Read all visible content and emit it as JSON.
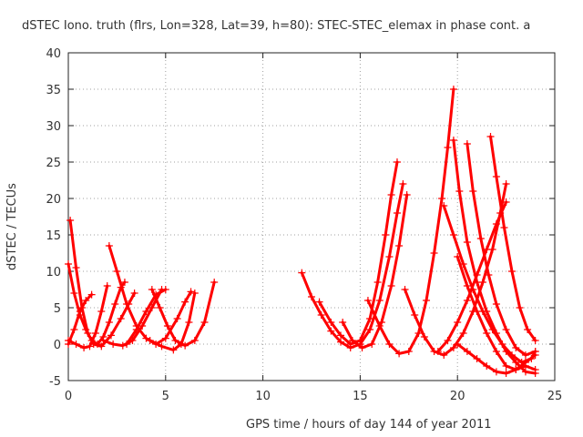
{
  "chart_data": {
    "type": "scatter",
    "title": "dSTEC Iono. truth (flrs, Lon=328, Lat=39, h=80): STEC-STEC_elemax in phase cont. a",
    "xlabel": "GPS time / hours of day 144 of year 2011",
    "ylabel": "dSTEC  / TECUs",
    "xlim": [
      0,
      25
    ],
    "ylim": [
      -5,
      40
    ],
    "xticks": [
      0,
      5,
      10,
      15,
      20,
      25
    ],
    "yticks": [
      -5,
      0,
      5,
      10,
      15,
      20,
      25,
      30,
      35,
      40
    ],
    "grid": true,
    "marker": "plus",
    "color": "#ff0000",
    "series": [
      {
        "points": [
          [
            0.0,
            11.0
          ],
          [
            0.3,
            7.0
          ],
          [
            0.6,
            4.0
          ],
          [
            0.9,
            2.0
          ],
          [
            1.2,
            0.5
          ],
          [
            1.5,
            0.0
          ],
          [
            1.8,
            1.0
          ],
          [
            2.1,
            3.0
          ],
          [
            2.4,
            5.5
          ],
          [
            2.7,
            7.8
          ],
          [
            2.9,
            8.5
          ]
        ]
      },
      {
        "points": [
          [
            0.1,
            17.0
          ],
          [
            0.4,
            10.5
          ],
          [
            0.7,
            5.0
          ],
          [
            1.0,
            1.5
          ],
          [
            1.3,
            0.0
          ],
          [
            1.7,
            -0.3
          ],
          [
            2.2,
            1.2
          ],
          [
            2.7,
            3.5
          ],
          [
            3.1,
            5.5
          ],
          [
            3.4,
            7.0
          ]
        ]
      },
      {
        "points": [
          [
            0.0,
            0.5
          ],
          [
            0.4,
            0.0
          ],
          [
            0.8,
            -0.5
          ],
          [
            1.1,
            -0.3
          ],
          [
            1.4,
            1.5
          ],
          [
            1.7,
            4.5
          ],
          [
            2.0,
            8.0
          ]
        ]
      },
      {
        "points": [
          [
            0.0,
            0.0
          ],
          [
            0.3,
            2.0
          ],
          [
            0.6,
            4.5
          ],
          [
            0.9,
            6.0
          ],
          [
            1.2,
            6.8
          ]
        ]
      },
      {
        "points": [
          [
            2.1,
            13.5
          ],
          [
            2.5,
            10.0
          ],
          [
            3.0,
            5.5
          ],
          [
            3.5,
            2.5
          ],
          [
            4.0,
            0.8
          ],
          [
            4.5,
            0.0
          ],
          [
            5.0,
            0.8
          ],
          [
            5.6,
            3.5
          ],
          [
            6.0,
            5.8
          ],
          [
            6.3,
            7.2
          ]
        ]
      },
      {
        "points": [
          [
            1.8,
            0.5
          ],
          [
            2.3,
            0.0
          ],
          [
            2.8,
            -0.2
          ],
          [
            3.3,
            0.5
          ],
          [
            3.8,
            2.5
          ],
          [
            4.3,
            5.0
          ],
          [
            4.8,
            7.5
          ]
        ]
      },
      {
        "points": [
          [
            3.0,
            0.0
          ],
          [
            3.5,
            2.0
          ],
          [
            4.0,
            4.5
          ],
          [
            4.5,
            6.8
          ],
          [
            5.0,
            7.5
          ]
        ]
      },
      {
        "points": [
          [
            4.3,
            7.5
          ],
          [
            4.7,
            5.0
          ],
          [
            5.1,
            2.5
          ],
          [
            5.5,
            0.5
          ],
          [
            6.0,
            -0.2
          ],
          [
            6.5,
            0.5
          ],
          [
            7.0,
            3.0
          ],
          [
            7.5,
            8.5
          ]
        ]
      },
      {
        "points": [
          [
            4.2,
            0.5
          ],
          [
            4.8,
            -0.3
          ],
          [
            5.4,
            -0.8
          ],
          [
            5.8,
            0.0
          ],
          [
            6.2,
            3.0
          ],
          [
            6.5,
            7.0
          ]
        ]
      },
      {
        "points": [
          [
            12.0,
            9.8
          ],
          [
            12.5,
            6.5
          ],
          [
            13.0,
            4.0
          ],
          [
            13.5,
            1.8
          ],
          [
            14.0,
            0.3
          ],
          [
            14.5,
            -0.5
          ],
          [
            15.0,
            0.0
          ],
          [
            15.5,
            2.0
          ],
          [
            16.0,
            6.0
          ],
          [
            16.5,
            12.0
          ],
          [
            16.9,
            18.0
          ],
          [
            17.2,
            22.0
          ]
        ]
      },
      {
        "points": [
          [
            12.9,
            5.8
          ],
          [
            13.5,
            3.0
          ],
          [
            14.0,
            1.2
          ],
          [
            14.5,
            0.0
          ],
          [
            15.0,
            0.5
          ],
          [
            15.5,
            3.5
          ],
          [
            15.9,
            8.5
          ],
          [
            16.3,
            15.0
          ],
          [
            16.6,
            20.5
          ],
          [
            16.9,
            25.0
          ]
        ]
      },
      {
        "points": [
          [
            14.1,
            3.0
          ],
          [
            14.6,
            0.5
          ],
          [
            15.1,
            -0.5
          ],
          [
            15.6,
            0.0
          ],
          [
            16.1,
            3.0
          ],
          [
            16.6,
            8.0
          ],
          [
            17.0,
            13.5
          ],
          [
            17.4,
            20.5
          ]
        ]
      },
      {
        "points": [
          [
            15.4,
            6.0
          ],
          [
            16.0,
            2.5
          ],
          [
            16.5,
            0.0
          ],
          [
            17.0,
            -1.3
          ],
          [
            17.5,
            -1.0
          ],
          [
            18.0,
            1.5
          ],
          [
            18.4,
            6.0
          ],
          [
            18.8,
            12.5
          ],
          [
            19.2,
            20.0
          ],
          [
            19.5,
            27.0
          ],
          [
            19.8,
            35.0
          ]
        ]
      },
      {
        "points": [
          [
            17.3,
            7.5
          ],
          [
            17.8,
            4.0
          ],
          [
            18.3,
            1.0
          ],
          [
            18.8,
            -1.0
          ],
          [
            19.3,
            -1.5
          ],
          [
            19.8,
            -0.5
          ],
          [
            20.3,
            1.5
          ],
          [
            20.8,
            4.5
          ],
          [
            21.3,
            8.5
          ],
          [
            21.8,
            13.0
          ],
          [
            22.2,
            18.0
          ],
          [
            22.5,
            22.0
          ]
        ]
      },
      {
        "points": [
          [
            19.3,
            19.0
          ],
          [
            19.8,
            15.0
          ],
          [
            20.3,
            11.0
          ],
          [
            20.8,
            7.5
          ],
          [
            21.3,
            4.5
          ],
          [
            21.8,
            2.0
          ],
          [
            22.3,
            0.0
          ],
          [
            22.8,
            -1.5
          ],
          [
            23.3,
            -2.5
          ],
          [
            23.8,
            -2.0
          ],
          [
            24.0,
            -1.0
          ]
        ]
      },
      {
        "points": [
          [
            19.8,
            28.0
          ],
          [
            20.1,
            21.0
          ],
          [
            20.5,
            14.0
          ],
          [
            21.0,
            8.5
          ],
          [
            21.5,
            4.5
          ],
          [
            22.0,
            1.5
          ],
          [
            22.5,
            -1.0
          ],
          [
            23.0,
            -2.5
          ],
          [
            23.5,
            -3.8
          ],
          [
            24.0,
            -4.0
          ]
        ]
      },
      {
        "points": [
          [
            20.5,
            27.5
          ],
          [
            20.8,
            21.0
          ],
          [
            21.2,
            14.5
          ],
          [
            21.6,
            9.5
          ],
          [
            22.0,
            5.5
          ],
          [
            22.5,
            2.0
          ],
          [
            23.0,
            -0.5
          ],
          [
            23.5,
            -1.5
          ],
          [
            24.0,
            -1.0
          ]
        ]
      },
      {
        "points": [
          [
            21.7,
            28.5
          ],
          [
            22.0,
            23.0
          ],
          [
            22.4,
            16.0
          ],
          [
            22.8,
            10.0
          ],
          [
            23.2,
            5.0
          ],
          [
            23.6,
            2.0
          ],
          [
            24.0,
            0.5
          ]
        ]
      },
      {
        "points": [
          [
            20.0,
            12.0
          ],
          [
            20.5,
            8.0
          ],
          [
            21.0,
            4.5
          ],
          [
            21.5,
            1.5
          ],
          [
            22.0,
            -1.0
          ],
          [
            22.5,
            -3.0
          ],
          [
            23.0,
            -3.5
          ],
          [
            23.5,
            -2.5
          ],
          [
            24.0,
            -1.5
          ]
        ]
      },
      {
        "points": [
          [
            20.0,
            0.0
          ],
          [
            20.5,
            -1.0
          ],
          [
            21.0,
            -2.0
          ],
          [
            21.5,
            -3.0
          ],
          [
            22.0,
            -3.8
          ],
          [
            22.5,
            -4.0
          ],
          [
            23.0,
            -3.5
          ],
          [
            23.5,
            -3.0
          ],
          [
            24.0,
            -3.5
          ]
        ]
      },
      {
        "points": [
          [
            19.0,
            -1.0
          ],
          [
            19.5,
            0.5
          ],
          [
            20.0,
            3.0
          ],
          [
            20.5,
            6.0
          ],
          [
            21.0,
            9.5
          ],
          [
            21.5,
            13.0
          ],
          [
            22.0,
            16.5
          ],
          [
            22.5,
            19.5
          ]
        ]
      }
    ]
  }
}
